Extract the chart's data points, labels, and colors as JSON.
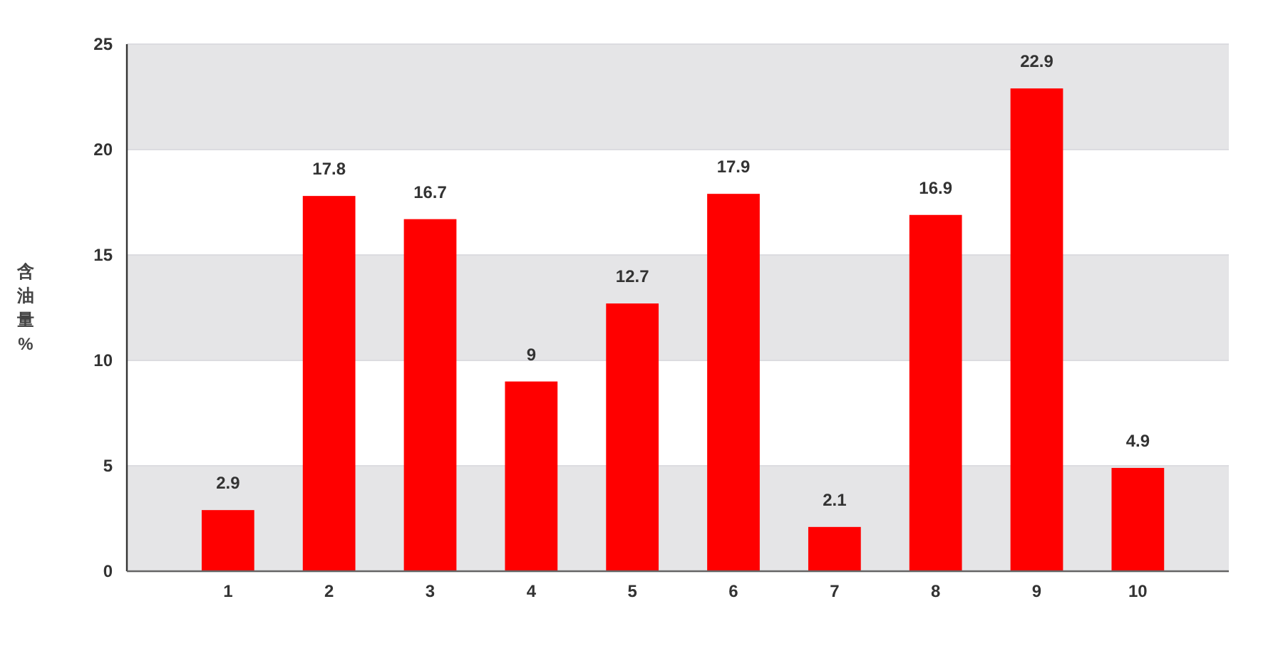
{
  "chart_data": {
    "type": "bar",
    "ylabel": "含油量%",
    "categories": [
      "1",
      "2",
      "3",
      "4",
      "5",
      "6",
      "7",
      "8",
      "9",
      "10"
    ],
    "values": [
      2.9,
      17.8,
      16.7,
      9,
      12.7,
      17.9,
      2.1,
      16.9,
      22.9,
      4.9
    ],
    "color": "#ff0000",
    "ylim": [
      0,
      25
    ],
    "yticks": [
      0,
      5,
      10,
      15,
      20,
      25
    ],
    "grid": true,
    "data_labels": true
  }
}
